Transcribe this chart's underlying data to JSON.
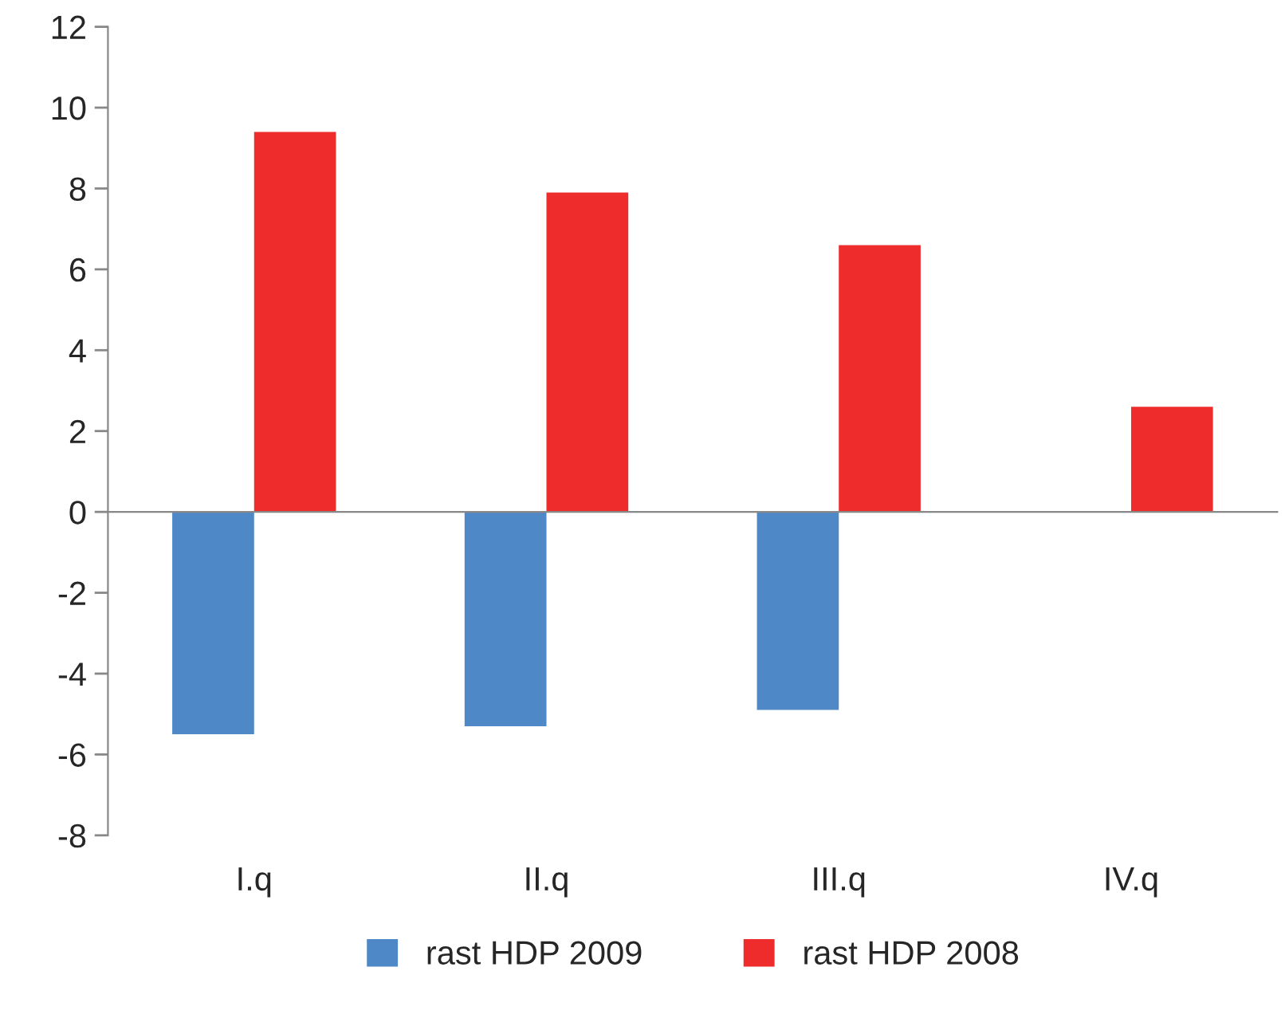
{
  "chart_data": {
    "type": "bar",
    "categories": [
      "I.q",
      "II.q",
      "III.q",
      "IV.q"
    ],
    "series": [
      {
        "name": "rast HDP 2009",
        "color": "#4f88c6",
        "values": [
          -5.5,
          -5.3,
          -4.9,
          null
        ]
      },
      {
        "name": "rast HDP 2008",
        "color": "#ee2c2c",
        "values": [
          9.4,
          7.9,
          6.6,
          2.6
        ]
      }
    ],
    "ylim": [
      -8,
      12
    ],
    "yticks": [
      -8,
      -6,
      -4,
      -2,
      0,
      2,
      4,
      6,
      8,
      10,
      12
    ],
    "legend": "bottom"
  }
}
